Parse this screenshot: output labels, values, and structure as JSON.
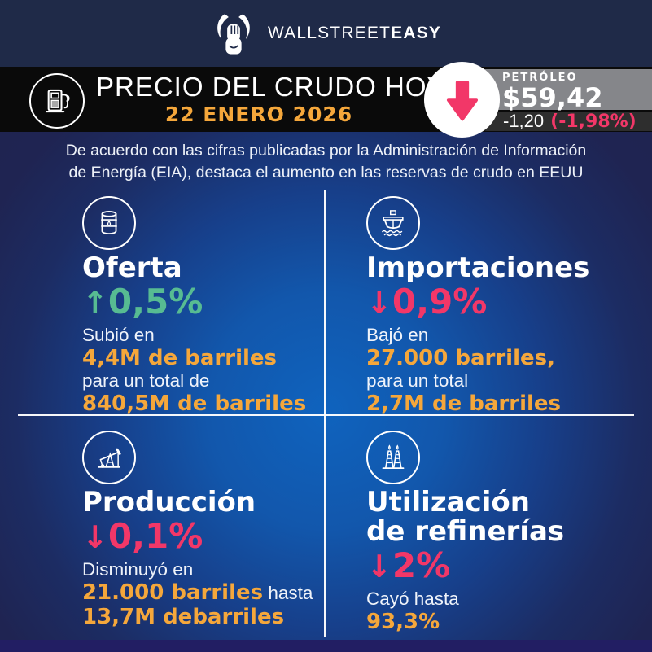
{
  "colors": {
    "orange": "#F5A73B",
    "green": "#57BB92",
    "pink": "#F23768",
    "navy_top": "#1F2A48",
    "black_bar": "#0A0A0A",
    "gray_box": "#85868A",
    "change_strip": "#2E2E2E",
    "blue_center": "#0F63BE",
    "bg_dark": "#1F2450",
    "bottom_band": "#221E63"
  },
  "brand": {
    "wordmark_regular": "WALLSTREET",
    "wordmark_bold": "EASY"
  },
  "header": {
    "title": "PRECIO DEL CRUDO HOY",
    "date": "22 ENERO 2026",
    "ticker_label": "PETRÓLEO",
    "price": "$59,42",
    "change": "-1,20",
    "change_pct": "(-1,98%)"
  },
  "subtitle": {
    "line1": "De acuerdo con las cifras publicadas por la Administración de Información",
    "line2": "de Energía (EIA), destaca el aumento en las reservas de crudo en EEUU"
  },
  "quadrants": [
    {
      "icon": "oil-barrel-icon",
      "title_lines": [
        "Oferta"
      ],
      "arrow": "↑",
      "pct": "0,5%",
      "direction": "up",
      "lines": [
        [
          {
            "text": "Subió en",
            "style": "plain"
          }
        ],
        [
          {
            "text": "4,4M de barriles",
            "style": "highlight"
          }
        ],
        [
          {
            "text": "para un total de",
            "style": "plain"
          }
        ],
        [
          {
            "text": "840,5M de barriles",
            "style": "highlight"
          }
        ]
      ]
    },
    {
      "icon": "tanker-ship-icon",
      "title_lines": [
        "Importaciones"
      ],
      "arrow": "↓",
      "pct": "0,9%",
      "direction": "down",
      "lines": [
        [
          {
            "text": "Bajó en",
            "style": "plain"
          }
        ],
        [
          {
            "text": "27.000 barriles,",
            "style": "highlight"
          }
        ],
        [
          {
            "text": "para un total",
            "style": "plain"
          }
        ],
        [
          {
            "text": "2,7M de barriles",
            "style": "highlight"
          }
        ]
      ]
    },
    {
      "icon": "pumpjack-icon",
      "title_lines": [
        "Producción"
      ],
      "arrow": "↓",
      "pct": "0,1%",
      "direction": "down",
      "lines": [
        [
          {
            "text": "Disminuyó en",
            "style": "plain"
          }
        ],
        [
          {
            "text": "21.000 barriles",
            "style": "highlight"
          },
          {
            "text": " hasta",
            "style": "plain"
          }
        ],
        [
          {
            "text": "13,7M debarriles",
            "style": "highlight"
          }
        ]
      ]
    },
    {
      "icon": "refinery-towers-icon",
      "title_lines": [
        "Utilización",
        "de refinerías"
      ],
      "arrow": "↓",
      "pct": "2%",
      "direction": "down",
      "lines": [
        [
          {
            "text": "Cayó hasta",
            "style": "plain"
          }
        ],
        [
          {
            "text": "93,3%",
            "style": "highlight"
          }
        ]
      ]
    }
  ]
}
